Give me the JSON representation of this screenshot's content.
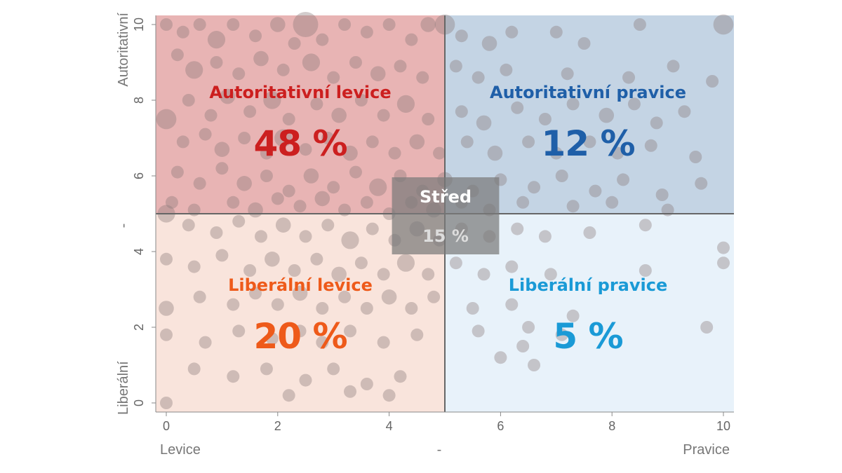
{
  "chart_data": {
    "type": "scatter",
    "xlim": [
      0,
      10
    ],
    "ylim": [
      0,
      10
    ],
    "x_ticks": [
      "0",
      "2",
      "4",
      "6",
      "8",
      "10"
    ],
    "y_ticks": [
      "0",
      "2",
      "4",
      "6",
      "8",
      "10"
    ],
    "x_axis": {
      "left_label": "Levice",
      "middle_label": "-",
      "right_label": "Pravice"
    },
    "y_axis": {
      "bottom_label": "Liberální",
      "middle_label": "-",
      "top_label": "Autoritativní"
    },
    "divider": {
      "x": 5,
      "y": 5
    },
    "quadrants": [
      {
        "id": "auth-left",
        "label": "Autoritativní levice",
        "value": "48 %",
        "color": "#cc1f1f",
        "fill": "#e8b4b4"
      },
      {
        "id": "auth-right",
        "label": "Autoritativní pravice",
        "value": "12 %",
        "color": "#1f5fa8",
        "fill": "#c4d4e4"
      },
      {
        "id": "lib-left",
        "label": "Liberální levice",
        "value": "20 %",
        "color": "#ee5a1a",
        "fill": "#f9e4dc"
      },
      {
        "id": "lib-right",
        "label": "Liberální pravice",
        "value": "5 %",
        "color": "#1a9ad6",
        "fill": "#e8f2fa"
      }
    ],
    "center_box": {
      "label": "Střed",
      "value": "15 %",
      "x_range": [
        4,
        6
      ],
      "y_range": [
        4,
        6
      ]
    },
    "points": [
      [
        0,
        10,
        1
      ],
      [
        0.3,
        9.8,
        1
      ],
      [
        0.6,
        10,
        1
      ],
      [
        0.9,
        9.6,
        1.4
      ],
      [
        1.2,
        10,
        1
      ],
      [
        1.6,
        9.7,
        1
      ],
      [
        2.0,
        10,
        1.2
      ],
      [
        2.3,
        9.5,
        1
      ],
      [
        2.5,
        10,
        2
      ],
      [
        2.8,
        9.6,
        1
      ],
      [
        3.2,
        10,
        1
      ],
      [
        3.6,
        9.8,
        1
      ],
      [
        4.0,
        10,
        1
      ],
      [
        4.4,
        9.6,
        1
      ],
      [
        4.7,
        10,
        1.2
      ],
      [
        5.0,
        10,
        1.6
      ],
      [
        5.3,
        9.7,
        1
      ],
      [
        5.8,
        9.5,
        1.2
      ],
      [
        6.2,
        9.8,
        1
      ],
      [
        7.0,
        9.8,
        1
      ],
      [
        7.5,
        9.5,
        1
      ],
      [
        8.5,
        10,
        1
      ],
      [
        10,
        10,
        1.6
      ],
      [
        0.2,
        9.2,
        1
      ],
      [
        0.5,
        8.8,
        1.4
      ],
      [
        0.9,
        9.0,
        1
      ],
      [
        1.3,
        8.7,
        1
      ],
      [
        1.7,
        9.1,
        1.2
      ],
      [
        2.1,
        8.8,
        1
      ],
      [
        2.6,
        9.0,
        1.4
      ],
      [
        3.0,
        8.6,
        1
      ],
      [
        3.4,
        9.0,
        1
      ],
      [
        3.8,
        8.7,
        1.2
      ],
      [
        4.2,
        8.9,
        1
      ],
      [
        4.6,
        8.6,
        1
      ],
      [
        5.2,
        8.9,
        1
      ],
      [
        5.6,
        8.6,
        1
      ],
      [
        6.1,
        8.8,
        1
      ],
      [
        7.2,
        8.7,
        1
      ],
      [
        8.3,
        8.6,
        1
      ],
      [
        9.1,
        8.9,
        1
      ],
      [
        9.8,
        8.5,
        1
      ],
      [
        0,
        7.5,
        1.6
      ],
      [
        0.4,
        8.0,
        1
      ],
      [
        0.8,
        7.6,
        1
      ],
      [
        1.1,
        8.1,
        1.2
      ],
      [
        1.5,
        7.7,
        1
      ],
      [
        1.9,
        8.0,
        1.4
      ],
      [
        2.2,
        7.5,
        1
      ],
      [
        2.7,
        7.9,
        1
      ],
      [
        3.1,
        7.6,
        1.2
      ],
      [
        3.5,
        8.0,
        1
      ],
      [
        3.9,
        7.6,
        1
      ],
      [
        4.3,
        7.9,
        1.4
      ],
      [
        4.7,
        7.5,
        1
      ],
      [
        5.3,
        7.7,
        1
      ],
      [
        5.7,
        7.4,
        1.2
      ],
      [
        6.3,
        7.8,
        1
      ],
      [
        6.8,
        7.5,
        1
      ],
      [
        7.3,
        7.9,
        1
      ],
      [
        7.9,
        7.6,
        1.2
      ],
      [
        8.4,
        7.9,
        1
      ],
      [
        8.8,
        7.4,
        1
      ],
      [
        9.3,
        7.7,
        1
      ],
      [
        0.3,
        6.9,
        1
      ],
      [
        0.7,
        7.1,
        1
      ],
      [
        1.0,
        6.7,
        1.2
      ],
      [
        1.4,
        7.0,
        1
      ],
      [
        1.8,
        6.6,
        1
      ],
      [
        2.1,
        7.0,
        1.4
      ],
      [
        2.5,
        6.7,
        1
      ],
      [
        2.9,
        7.0,
        1
      ],
      [
        3.3,
        6.6,
        1.2
      ],
      [
        3.7,
        6.9,
        1
      ],
      [
        4.1,
        6.6,
        1
      ],
      [
        4.5,
        6.9,
        1.2
      ],
      [
        4.9,
        6.6,
        1
      ],
      [
        5.4,
        6.9,
        1
      ],
      [
        5.9,
        6.6,
        1.2
      ],
      [
        6.5,
        6.9,
        1
      ],
      [
        7.0,
        6.6,
        1
      ],
      [
        7.6,
        6.9,
        1
      ],
      [
        8.1,
        6.6,
        1
      ],
      [
        8.7,
        6.8,
        1
      ],
      [
        9.5,
        6.5,
        1
      ],
      [
        0.2,
        6.1,
        1
      ],
      [
        0.6,
        5.8,
        1
      ],
      [
        1.0,
        6.2,
        1
      ],
      [
        1.4,
        5.8,
        1.2
      ],
      [
        1.8,
        6.0,
        1
      ],
      [
        2.2,
        5.6,
        1
      ],
      [
        2.6,
        6.0,
        1.2
      ],
      [
        3.0,
        5.7,
        1
      ],
      [
        3.4,
        6.1,
        1
      ],
      [
        3.8,
        5.7,
        1.4
      ],
      [
        4.2,
        6.0,
        1
      ],
      [
        4.6,
        5.6,
        1
      ],
      [
        5.0,
        5.9,
        1.2
      ],
      [
        5.5,
        5.6,
        1
      ],
      [
        6.0,
        5.9,
        1
      ],
      [
        6.6,
        5.7,
        1
      ],
      [
        7.1,
        6.0,
        1
      ],
      [
        7.7,
        5.6,
        1
      ],
      [
        8.2,
        5.9,
        1
      ],
      [
        8.9,
        5.5,
        1
      ],
      [
        9.6,
        5.8,
        1
      ],
      [
        0.1,
        5.3,
        1
      ],
      [
        0.5,
        5.1,
        1
      ],
      [
        1.2,
        5.3,
        1
      ],
      [
        1.6,
        5.1,
        1.2
      ],
      [
        2.0,
        5.4,
        1
      ],
      [
        2.4,
        5.2,
        1
      ],
      [
        2.8,
        5.4,
        1.2
      ],
      [
        3.2,
        5.1,
        1
      ],
      [
        3.6,
        5.3,
        1
      ],
      [
        4.0,
        5.0,
        1
      ],
      [
        4.4,
        5.3,
        1
      ],
      [
        4.8,
        5.1,
        1.2
      ],
      [
        5.3,
        5.3,
        1
      ],
      [
        5.8,
        5.1,
        1
      ],
      [
        6.4,
        5.3,
        1
      ],
      [
        7.3,
        5.2,
        1
      ],
      [
        8.0,
        5.3,
        1
      ],
      [
        9.0,
        5.1,
        1
      ],
      [
        0,
        5.0,
        1.4
      ],
      [
        0.4,
        4.7,
        1
      ],
      [
        0.9,
        4.5,
        1
      ],
      [
        1.3,
        4.8,
        1
      ],
      [
        1.7,
        4.4,
        1
      ],
      [
        2.1,
        4.7,
        1.2
      ],
      [
        2.5,
        4.4,
        1
      ],
      [
        2.9,
        4.7,
        1
      ],
      [
        3.3,
        4.3,
        1.4
      ],
      [
        3.7,
        4.6,
        1
      ],
      [
        4.1,
        4.3,
        1
      ],
      [
        4.5,
        4.6,
        1.2
      ],
      [
        4.9,
        4.3,
        1
      ],
      [
        5.3,
        4.6,
        1
      ],
      [
        5.8,
        4.4,
        1
      ],
      [
        6.3,
        4.6,
        1
      ],
      [
        6.8,
        4.4,
        1
      ],
      [
        7.6,
        4.5,
        1
      ],
      [
        8.6,
        4.7,
        1
      ],
      [
        10,
        4.1,
        1
      ],
      [
        0,
        3.8,
        1
      ],
      [
        0.5,
        3.6,
        1
      ],
      [
        1.0,
        3.9,
        1
      ],
      [
        1.5,
        3.5,
        1
      ],
      [
        1.9,
        3.8,
        1.2
      ],
      [
        2.3,
        3.5,
        1
      ],
      [
        2.7,
        3.8,
        1
      ],
      [
        3.1,
        3.4,
        1.2
      ],
      [
        3.5,
        3.7,
        1
      ],
      [
        3.9,
        3.4,
        1
      ],
      [
        4.3,
        3.7,
        1.4
      ],
      [
        4.7,
        3.4,
        1
      ],
      [
        5.2,
        3.7,
        1
      ],
      [
        5.7,
        3.4,
        1
      ],
      [
        6.2,
        3.6,
        1
      ],
      [
        6.9,
        3.4,
        1
      ],
      [
        8.6,
        3.5,
        1
      ],
      [
        10,
        3.7,
        1
      ],
      [
        0,
        2.5,
        1.2
      ],
      [
        0.6,
        2.8,
        1
      ],
      [
        1.2,
        2.6,
        1
      ],
      [
        1.6,
        2.9,
        1
      ],
      [
        2.0,
        2.6,
        1
      ],
      [
        2.4,
        2.9,
        1.2
      ],
      [
        2.8,
        2.5,
        1
      ],
      [
        3.2,
        2.8,
        1
      ],
      [
        3.6,
        2.5,
        1
      ],
      [
        4.0,
        2.8,
        1.2
      ],
      [
        4.4,
        2.5,
        1
      ],
      [
        4.8,
        2.8,
        1
      ],
      [
        5.5,
        2.5,
        1
      ],
      [
        6.2,
        2.6,
        1
      ],
      [
        6.5,
        2.0,
        1
      ],
      [
        7.3,
        2.3,
        1
      ],
      [
        9.7,
        2.0,
        1
      ],
      [
        0,
        1.8,
        1
      ],
      [
        0.7,
        1.6,
        1
      ],
      [
        1.3,
        1.9,
        1
      ],
      [
        1.9,
        1.7,
        1
      ],
      [
        2.4,
        1.9,
        1
      ],
      [
        2.8,
        1.6,
        1
      ],
      [
        3.3,
        1.9,
        1
      ],
      [
        3.9,
        1.6,
        1
      ],
      [
        4.5,
        1.8,
        1
      ],
      [
        5.6,
        1.9,
        1
      ],
      [
        6.0,
        1.2,
        1
      ],
      [
        6.4,
        1.5,
        1
      ],
      [
        6.6,
        1.0,
        1
      ],
      [
        7.1,
        1.8,
        1
      ],
      [
        0.5,
        0.9,
        1
      ],
      [
        1.2,
        0.7,
        1
      ],
      [
        1.8,
        0.9,
        1
      ],
      [
        2.5,
        0.6,
        1
      ],
      [
        3.0,
        0.9,
        1
      ],
      [
        3.6,
        0.5,
        1
      ],
      [
        4.2,
        0.7,
        1
      ],
      [
        4.0,
        0.2,
        1
      ],
      [
        0,
        0,
        1
      ],
      [
        2.2,
        0.2,
        1
      ],
      [
        3.3,
        0.3,
        1
      ]
    ]
  }
}
